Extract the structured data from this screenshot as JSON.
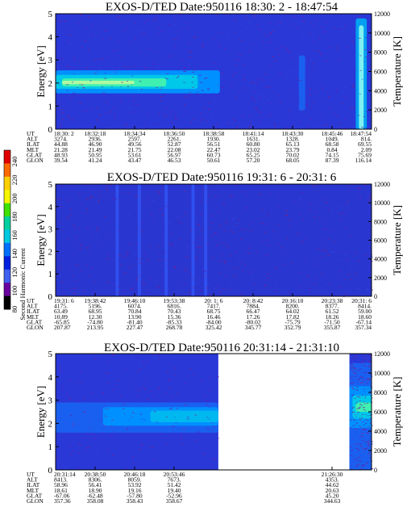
{
  "colorbar": {
    "label": "Second Harmonic Current",
    "ticks": [
      "240",
      "220",
      "200",
      "180",
      "160",
      "140",
      "120",
      "100",
      "80"
    ],
    "colors": [
      "#e00000",
      "#ff6a00",
      "#ffd000",
      "#f6f600",
      "#40e000",
      "#00d0a0",
      "#00c8e0",
      "#0070ff",
      "#0020e0",
      "#4060f0",
      "#6a00a0",
      "#000000"
    ]
  },
  "chart_data": [
    {
      "type": "heatmap",
      "title": "EXOS-D/TED   Date:950116  18:30: 2 - 18:47:54",
      "ylabel": "Energy [eV]",
      "y2label": "Temperature [K]",
      "ylim": [
        0,
        5
      ],
      "y2lim": [
        0,
        12000
      ],
      "yticks": [
        "0",
        "1",
        "2",
        "3",
        "4",
        "5"
      ],
      "y2ticks": [
        "0",
        "2000",
        "4000",
        "6000",
        "8000",
        "10000",
        "12000"
      ],
      "background": "#2a38d8",
      "bands": [
        {
          "x0": 0.0,
          "x1": 0.52,
          "y0": 1.55,
          "y1": 2.55,
          "color": "#0090ff"
        },
        {
          "x0": 0.0,
          "x1": 0.45,
          "y0": 1.75,
          "y1": 2.35,
          "color": "#00c8e8"
        },
        {
          "x0": 0.02,
          "x1": 0.35,
          "y0": 1.85,
          "y1": 2.2,
          "color": "#40f0b0"
        },
        {
          "x0": 0.02,
          "x1": 0.25,
          "y0": 1.95,
          "y1": 2.1,
          "color": "#b0f8a0"
        },
        {
          "x0": 0.95,
          "x1": 0.985,
          "y0": 0.0,
          "y1": 4.8,
          "color": "#00a0f0"
        },
        {
          "x0": 0.96,
          "x1": 0.975,
          "y0": 0.0,
          "y1": 4.5,
          "color": "#80f0f0"
        },
        {
          "x0": 0.77,
          "x1": 0.79,
          "y0": 0.8,
          "y1": 3.2,
          "color": "#1a60f0"
        }
      ],
      "noise_density": 0.6,
      "orbit": {
        "rows": [
          "UT",
          "ALT",
          "ILAT",
          "MLT",
          "GLAT",
          "GLON"
        ],
        "columns": [
          [
            "18:30: 2",
            "3274.",
            "44.88",
            "21.28",
            "48.93",
            "39.54"
          ],
          [
            "18:32:18",
            "2936.",
            "46.90",
            "21.49",
            "50.95",
            "41.24"
          ],
          [
            "18:34:34",
            "2597.",
            "49.56",
            "21.75",
            "53.61",
            "43.47"
          ],
          [
            "18:36:50",
            "2261.",
            "52.87",
            "22.08",
            "56.97",
            "46.53"
          ],
          [
            "18:38:58",
            "1930.",
            "56.51",
            "22.47",
            "60.73",
            "50.61"
          ],
          [
            "18:41:14",
            "1631.",
            "60.80",
            "23.02",
            "65.25",
            "57.20"
          ],
          [
            "18:43:30",
            "1328.",
            "65.13",
            "23.79",
            "70.02",
            "68.05"
          ],
          [
            "18:45:46",
            "1049.",
            "68.58",
            "0.84",
            "74.15",
            "87.39"
          ],
          [
            "18:47:54",
            "814.",
            "69.55",
            "2.09",
            "75.69",
            "116.14"
          ]
        ]
      }
    },
    {
      "type": "heatmap",
      "title": "EXOS-D/TED   Date:950116  19:31: 6 - 20:31: 6",
      "ylabel": "Energy [eV]",
      "y2label": "Temperature [K]",
      "ylim": [
        0,
        5
      ],
      "y2lim": [
        0,
        12000
      ],
      "yticks": [
        "0",
        "1",
        "2",
        "3",
        "4",
        "5"
      ],
      "y2ticks": [
        "0",
        "2000",
        "4000",
        "6000",
        "8000",
        "10000",
        "12000"
      ],
      "background": "#2a36d0",
      "bands": [
        {
          "x0": 0.19,
          "x1": 0.2,
          "y0": 0.0,
          "y1": 5.0,
          "color": "#3050f0"
        },
        {
          "x0": 0.26,
          "x1": 0.27,
          "y0": 0.0,
          "y1": 5.0,
          "color": "#3050f0"
        },
        {
          "x0": 0.345,
          "x1": 0.355,
          "y0": 0.0,
          "y1": 5.0,
          "color": "#3050f0"
        },
        {
          "x0": 0.43,
          "x1": 0.44,
          "y0": 0.0,
          "y1": 5.0,
          "color": "#3050f0"
        },
        {
          "x0": 0.47,
          "x1": 0.48,
          "y0": 0.0,
          "y1": 5.0,
          "color": "#3050f0"
        }
      ],
      "noise_density": 0.55,
      "orbit": {
        "rows": [
          "UT",
          "ALT",
          "ILAT",
          "MLT",
          "GLAT",
          "GLON"
        ],
        "columns": [
          [
            "19:31: 6",
            "4175.",
            "63.49",
            "10.89",
            "-65.85",
            "207.87"
          ],
          [
            "19:38:42",
            "5196.",
            "68.95",
            "12.30",
            "-74.80",
            "213.95"
          ],
          [
            "19:46:10",
            "6074.",
            "70.84",
            "13.90",
            "-81.40",
            "227.47"
          ],
          [
            "19:53:38",
            "6816.",
            "70.43",
            "15.36",
            "-85.33",
            "268.78"
          ],
          [
            "20: 1: 6",
            "7417.",
            "68.75",
            "16.46",
            "-84.00",
            "325.42"
          ],
          [
            "20: 8:42",
            "7884.",
            "66.47",
            "17.26",
            "-80.02",
            "345.77"
          ],
          [
            "20:16:10",
            "8200.",
            "64.02",
            "17.82",
            "-75.79",
            "352.79"
          ],
          [
            "20:23:38",
            "8377.",
            "61.52",
            "18.26",
            "-71.50",
            "355.87"
          ],
          [
            "20:31: 6",
            "8414.",
            "59.00",
            "18.60",
            "-67.14",
            "357.34"
          ]
        ]
      }
    },
    {
      "type": "heatmap",
      "title": "EXOS-D/TED   Date:950116  20:31:14 - 21:31:10",
      "ylabel": "Energy [eV]",
      "y2label": "Temperature [K]",
      "ylim": [
        0,
        5
      ],
      "y2lim": [
        0,
        12000
      ],
      "yticks": [
        "0",
        "1",
        "2",
        "3",
        "4",
        "5"
      ],
      "y2ticks": [
        "0",
        "2000",
        "4000",
        "6000",
        "8000",
        "10000",
        "12000"
      ],
      "background": "#2a38d8",
      "data_ranges": [
        [
          0.0,
          0.515
        ],
        [
          0.93,
          1.0
        ]
      ],
      "bands": [
        {
          "x0": 0.0,
          "x1": 0.515,
          "y0": 1.6,
          "y1": 2.9,
          "color": "#1a60f0"
        },
        {
          "x0": 0.15,
          "x1": 0.515,
          "y0": 1.9,
          "y1": 2.7,
          "color": "#0090ff"
        },
        {
          "x0": 0.3,
          "x1": 0.515,
          "y0": 2.05,
          "y1": 2.55,
          "color": "#00b8f0"
        },
        {
          "x0": 0.93,
          "x1": 1.0,
          "y0": 0.0,
          "y1": 4.6,
          "color": "#1a60f0"
        },
        {
          "x0": 0.93,
          "x1": 1.0,
          "y0": 1.8,
          "y1": 3.6,
          "color": "#0090ff"
        },
        {
          "x0": 0.94,
          "x1": 1.0,
          "y0": 2.2,
          "y1": 3.2,
          "color": "#00c8e8"
        },
        {
          "x0": 0.95,
          "x1": 1.0,
          "y0": 2.5,
          "y1": 2.9,
          "color": "#40f0b0"
        }
      ],
      "noise_density": 0.5,
      "orbit": {
        "rows": [
          "UT",
          "ALT",
          "ILAT",
          "MLT",
          "GLAT",
          "GLON"
        ],
        "columns": [
          [
            "20:31:14",
            "8413.",
            "58.96",
            "18.61",
            "-67.06",
            "357.36"
          ],
          [
            "20:38:50",
            "8306.",
            "56.41",
            "18.90",
            "-62.48",
            "358.08"
          ],
          [
            "20:46:18",
            "8059.",
            "53.92",
            "19.16",
            "-57.80",
            "358.43"
          ],
          [
            "20:53:46",
            "7673.",
            "51.42",
            "19.40",
            "-52.96",
            "358.67"
          ],
          [
            "",
            "",
            "",
            "",
            "",
            ""
          ],
          [
            "",
            "",
            "",
            "",
            "",
            ""
          ],
          [
            "",
            "",
            "",
            "",
            "",
            ""
          ],
          [
            "21:26:30",
            "4353.",
            "44.62",
            "20.63",
            "45.20",
            "344.63"
          ],
          [
            "",
            "",
            "",
            "",
            "",
            ""
          ]
        ]
      }
    }
  ]
}
